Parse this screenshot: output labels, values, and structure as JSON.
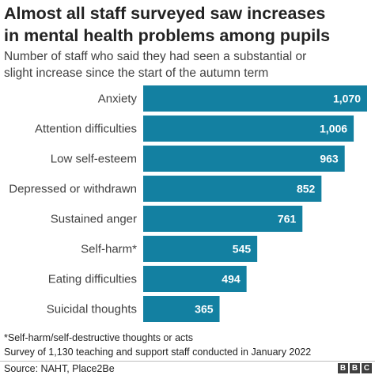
{
  "header": {
    "title_line1": "Almost all staff surveyed saw increases",
    "title_line2": "in mental health problems among pupils",
    "subtitle_line1": "Number of staff who said they had seen a substantial or",
    "subtitle_line2": "slight increase since the start of the autumn term"
  },
  "chart_data": {
    "type": "bar",
    "orientation": "horizontal",
    "categories": [
      "Anxiety",
      "Attention difficulties",
      "Low self-esteem",
      "Depressed or withdrawn",
      "Sustained anger",
      "Self-harm*",
      "Eating difficulties",
      "Suicidal thoughts"
    ],
    "values": [
      1070,
      1006,
      963,
      852,
      761,
      545,
      494,
      365
    ],
    "value_labels": [
      "1,070",
      "1,006",
      "963",
      "852",
      "761",
      "545",
      "494",
      "365"
    ],
    "xlim": [
      0,
      1070
    ],
    "bar_color": "#1380a1",
    "label_color": "#ffffff",
    "grid": false,
    "legend": "none"
  },
  "footer": {
    "note1": "*Self-harm/self-destructive thoughts or acts",
    "note2": "Survey of 1,130 teaching and support staff conducted in January 2022",
    "source": "Source: NAHT, Place2Be",
    "logo_letters": [
      "B",
      "B",
      "C"
    ]
  }
}
